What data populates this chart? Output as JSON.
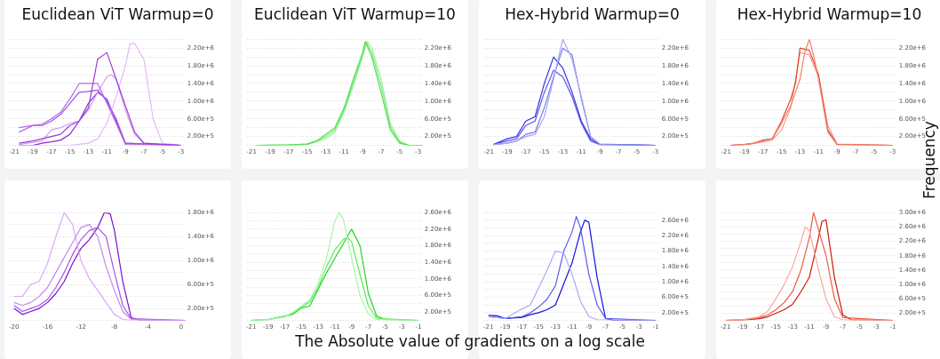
{
  "chart_data": [
    {
      "type": "line",
      "title": "Euclidean ViT Warmup=0",
      "xlim": [
        -21.5,
        -2.5
      ],
      "xticks": [
        -21,
        -19,
        -17,
        -15,
        -13,
        -11,
        -9,
        -7,
        -5,
        -3
      ],
      "ylim": [
        0,
        2400000
      ],
      "yticks": [
        {
          "value": 0,
          "label": null
        },
        {
          "value": 200000,
          "label": "2.00e+5"
        },
        {
          "value": 400000,
          "label": null
        },
        {
          "value": 600000,
          "label": "6.00e+5"
        },
        {
          "value": 800000,
          "label": null
        },
        {
          "value": 1000000,
          "label": "1.00e+6"
        },
        {
          "value": 1200000,
          "label": null
        },
        {
          "value": 1400000,
          "label": "1.40e+6"
        },
        {
          "value": 1600000,
          "label": null
        },
        {
          "value": 1800000,
          "label": "1.80e+6"
        },
        {
          "value": 2000000,
          "label": null
        },
        {
          "value": 2200000,
          "label": "2.20e+6"
        },
        {
          "value": 2400000,
          "label": null
        }
      ],
      "grid": "y",
      "series": [
        {
          "color": "#9b3ddc",
          "x": [
            -20.5,
            -19,
            -17,
            -16,
            -15,
            -14,
            -13,
            -12,
            -11,
            -10,
            -9,
            -8,
            -7,
            -3
          ],
          "values": [
            50000.0,
            100000.0,
            200000.0,
            250000.0,
            450000.0,
            550000.0,
            850000.0,
            1950000.0,
            2100000.0,
            1500000.0,
            900000.0,
            300000.0,
            50000.0,
            0
          ]
        },
        {
          "color": "#b36ae6",
          "x": [
            -20.5,
            -19,
            -18,
            -17,
            -16,
            -15,
            -14,
            -13,
            -12,
            -11,
            -10,
            -9,
            -3
          ],
          "values": [
            400000.0,
            450000.0,
            480000.0,
            600000.0,
            750000.0,
            1050000.0,
            1400000.0,
            1400000.0,
            1400000.0,
            950000.0,
            500000.0,
            20000.0,
            0
          ]
        },
        {
          "color": "#a24fe0",
          "x": [
            -20.5,
            -19,
            -18,
            -17,
            -16,
            -15,
            -14,
            -13,
            -12,
            -11,
            -10,
            -9,
            -3
          ],
          "values": [
            300000.0,
            450000.0,
            450000.0,
            550000.0,
            700000.0,
            950000.0,
            1200000.0,
            1220000.0,
            1250000.0,
            1000000.0,
            600000.0,
            50000.0,
            0
          ]
        },
        {
          "color": "#d39cf2",
          "x": [
            -20.5,
            -18,
            -17,
            -16,
            -15,
            -14,
            -13,
            -12,
            -11,
            -10.5,
            -10,
            -9,
            -8,
            -7,
            -3
          ],
          "values": [
            20000.0,
            100000.0,
            350000.0,
            400000.0,
            500000.0,
            550000.0,
            800000.0,
            1200000.0,
            1550000.0,
            1600000.0,
            1500000.0,
            800000.0,
            250000.0,
            50000.0,
            0
          ]
        },
        {
          "color": "#e6b8f7",
          "x": [
            -20.5,
            -15,
            -13,
            -12,
            -11,
            -10,
            -9,
            -8.5,
            -8,
            -7,
            -6,
            -5,
            -3
          ],
          "values": [
            0,
            0,
            50000.0,
            150000.0,
            500000.0,
            1100000.0,
            1800000.0,
            2300000.0,
            2300000.0,
            1950000.0,
            600000.0,
            50000.0,
            0
          ]
        },
        {
          "color": "#8a2bcc",
          "x": [
            -20.5,
            -19,
            -18,
            -17,
            -16,
            -15,
            -14,
            -13,
            -12,
            -11,
            -10,
            -9,
            -3
          ],
          "values": [
            0,
            0,
            50000.0,
            80000.0,
            120000.0,
            250000.0,
            550000.0,
            950000.0,
            1200000.0,
            1050000.0,
            550000.0,
            50000.0,
            0
          ]
        }
      ]
    },
    {
      "type": "line",
      "title": "Euclidean ViT Warmup=10",
      "xlim": [
        -21.5,
        -2.5
      ],
      "xticks": [
        -21,
        -19,
        -17,
        -15,
        -13,
        -11,
        -9,
        -7,
        -5,
        -3
      ],
      "ylim": [
        0,
        2400000
      ],
      "yticks": [
        {
          "value": 0,
          "label": null
        },
        {
          "value": 200000,
          "label": "2.00e+5"
        },
        {
          "value": 400000,
          "label": null
        },
        {
          "value": 600000,
          "label": "6.00e+5"
        },
        {
          "value": 800000,
          "label": null
        },
        {
          "value": 1000000,
          "label": "1.00e+6"
        },
        {
          "value": 1200000,
          "label": null
        },
        {
          "value": 1400000,
          "label": "1.40e+6"
        },
        {
          "value": 1600000,
          "label": null
        },
        {
          "value": 1800000,
          "label": "1.80e+6"
        },
        {
          "value": 2000000,
          "label": null
        },
        {
          "value": 2200000,
          "label": "2.20e+6"
        },
        {
          "value": 2400000,
          "label": null
        }
      ],
      "grid": "y",
      "series": [
        {
          "color": "#4fe04f",
          "x": [
            -20.5,
            -17,
            -15,
            -14,
            -13,
            -12,
            -11,
            -10,
            -9,
            -8.7,
            -8,
            -7,
            -6,
            -5,
            -4,
            -2.5
          ],
          "values": [
            0,
            10000.0,
            30000.0,
            100000.0,
            250000.0,
            400000.0,
            850000.0,
            1500000.0,
            2100000.0,
            2350000.0,
            2000000.0,
            1200000.0,
            350000.0,
            50000.0,
            0,
            0
          ]
        },
        {
          "color": "#7ceb7c",
          "x": [
            -20.5,
            -17,
            -15,
            -14,
            -13,
            -12,
            -11,
            -10,
            -9,
            -8.6,
            -8,
            -7,
            -6,
            -5,
            -4,
            -2.5
          ],
          "values": [
            0,
            10000.0,
            30000.0,
            90000.0,
            200000.0,
            350000.0,
            800000.0,
            1420000.0,
            2050000.0,
            2330000.0,
            2100000.0,
            1350000.0,
            420000.0,
            70000.0,
            0,
            0
          ]
        },
        {
          "color": "#9ef29e",
          "x": [
            -20.5,
            -17,
            -15,
            -14,
            -13,
            -12,
            -11,
            -10,
            -9,
            -8.5,
            -8,
            -7,
            -6,
            -5,
            -4,
            -2.5
          ],
          "values": [
            0,
            10000.0,
            20000.0,
            80000.0,
            150000.0,
            300000.0,
            750000.0,
            1350000.0,
            2000000.0,
            2350000.0,
            2200000.0,
            1500000.0,
            500000.0,
            100000.0,
            0,
            0
          ]
        }
      ]
    },
    {
      "type": "line",
      "title": "Hex-Hybrid Warmup=0",
      "xlim": [
        -21.5,
        -2.5
      ],
      "xticks": [
        -21,
        -19,
        -17,
        -15,
        -13,
        -11,
        -9,
        -7,
        -5,
        -3
      ],
      "ylim": [
        0,
        2400000
      ],
      "yticks": [
        {
          "value": 0,
          "label": null
        },
        {
          "value": 200000,
          "label": "2.00e+5"
        },
        {
          "value": 400000,
          "label": null
        },
        {
          "value": 600000,
          "label": "6.00e+5"
        },
        {
          "value": 800000,
          "label": null
        },
        {
          "value": 1000000,
          "label": "1.00e+6"
        },
        {
          "value": 1200000,
          "label": null
        },
        {
          "value": 1400000,
          "label": "1.40e+6"
        },
        {
          "value": 1600000,
          "label": null
        },
        {
          "value": 1800000,
          "label": "1.80e+6"
        },
        {
          "value": 2000000,
          "label": null
        },
        {
          "value": 2200000,
          "label": "2.20e+6"
        },
        {
          "value": 2400000,
          "label": null
        }
      ],
      "grid": "y",
      "series": [
        {
          "color": "#a6a6f5",
          "x": [
            -20.5,
            -19,
            -18,
            -17,
            -16,
            -15,
            -14,
            -13,
            -12,
            -11,
            -10,
            -9,
            -3
          ],
          "values": [
            20000.0,
            50000.0,
            100000.0,
            200000.0,
            250000.0,
            650000.0,
            1500000.0,
            2400000.0,
            1950000.0,
            1100000.0,
            200000.0,
            20000.0,
            0
          ]
        },
        {
          "color": "#3434e6",
          "x": [
            -20.5,
            -19,
            -18,
            -17,
            -16,
            -15,
            -14,
            -13,
            -12,
            -11,
            -10,
            -9,
            -3
          ],
          "values": [
            20000.0,
            150000.0,
            200000.0,
            550000.0,
            650000.0,
            1400000.0,
            2000000.0,
            1750000.0,
            1200000.0,
            550000.0,
            150000.0,
            20000.0,
            0
          ]
        },
        {
          "color": "#7a7af0",
          "x": [
            -20.5,
            -19,
            -18,
            -17,
            -16,
            -15,
            -14,
            -13,
            -12,
            -11,
            -10,
            -9,
            -3
          ],
          "values": [
            20000.0,
            50000.0,
            100000.0,
            250000.0,
            300000.0,
            850000.0,
            1550000.0,
            2200000.0,
            2050000.0,
            1050000.0,
            200000.0,
            30000.0,
            0
          ]
        },
        {
          "color": "#5a5aeb",
          "x": [
            -20.5,
            -19,
            -18,
            -17,
            -16,
            -15,
            -14,
            -13,
            -12,
            -11,
            -10,
            -9,
            -3
          ],
          "values": [
            20000.0,
            100000.0,
            150000.0,
            450000.0,
            550000.0,
            1200000.0,
            1700000.0,
            1550000.0,
            1100000.0,
            500000.0,
            100000.0,
            20000.0,
            0
          ]
        }
      ]
    },
    {
      "type": "line",
      "title": "Hex-Hybrid Warmup=10",
      "ylabel": "Frequency",
      "xlim": [
        -21.5,
        -2.5
      ],
      "xticks": [
        -21,
        -19,
        -17,
        -15,
        -13,
        -11,
        -9,
        -7,
        -5,
        -3
      ],
      "ylim": [
        0,
        2400000
      ],
      "yticks": [
        {
          "value": 0,
          "label": null
        },
        {
          "value": 200000,
          "label": "2.00e+5"
        },
        {
          "value": 400000,
          "label": null
        },
        {
          "value": 600000,
          "label": "6.00e+5"
        },
        {
          "value": 800000,
          "label": null
        },
        {
          "value": 1000000,
          "label": "1.00e+6"
        },
        {
          "value": 1200000,
          "label": null
        },
        {
          "value": 1400000,
          "label": "1.40e+6"
        },
        {
          "value": 1600000,
          "label": null
        },
        {
          "value": 1800000,
          "label": "1.80e+6"
        },
        {
          "value": 2000000,
          "label": null
        },
        {
          "value": 2200000,
          "label": "2.20e+6"
        },
        {
          "value": 2400000,
          "label": null
        }
      ],
      "grid": "y",
      "series": [
        {
          "color": "#f08070",
          "x": [
            -20.5,
            -19,
            -18,
            -17,
            -16,
            -15,
            -14,
            -13,
            -12.5,
            -12,
            -11.5,
            -11,
            -10,
            -9,
            -3
          ],
          "values": [
            0,
            20000.0,
            50000.0,
            100000.0,
            150000.0,
            500000.0,
            900000.0,
            1500000.0,
            2100000.0,
            2400000.0,
            2000000.0,
            1500000.0,
            300000.0,
            20000.0,
            0
          ]
        },
        {
          "color": "#e8402a",
          "x": [
            -20.5,
            -19,
            -18,
            -17,
            -16,
            -15,
            -14,
            -13.5,
            -13,
            -12,
            -11,
            -10,
            -9,
            -3
          ],
          "values": [
            0,
            20000.0,
            50000.0,
            120000.0,
            150000.0,
            550000.0,
            1050000.0,
            1400000.0,
            2200000.0,
            2150000.0,
            1600000.0,
            350000.0,
            20000.0,
            0
          ]
        },
        {
          "color": "#f4a093",
          "x": [
            -20.5,
            -19,
            -18,
            -17,
            -16,
            -15,
            -14,
            -13,
            -12,
            -11,
            -10,
            -9,
            -3
          ],
          "values": [
            0,
            20000.0,
            40000.0,
            80000.0,
            120000.0,
            350000.0,
            850000.0,
            2100000.0,
            2050000.0,
            1550000.0,
            450000.0,
            30000.0,
            0
          ]
        }
      ]
    },
    {
      "type": "line",
      "xlim": [
        -20.5,
        0.5
      ],
      "xticks": [
        -20,
        -16,
        -12,
        -8,
        -4,
        0
      ],
      "ylim": [
        0,
        1800000
      ],
      "yticks": [
        {
          "value": 0,
          "label": null
        },
        {
          "value": 200000,
          "label": "2.00e+5"
        },
        {
          "value": 400000,
          "label": null
        },
        {
          "value": 600000,
          "label": "6.00e+5"
        },
        {
          "value": 800000,
          "label": null
        },
        {
          "value": 1000000,
          "label": "1.00e+6"
        },
        {
          "value": 1200000,
          "label": null
        },
        {
          "value": 1400000,
          "label": "1.40e+6"
        },
        {
          "value": 1600000,
          "label": null
        },
        {
          "value": 1800000,
          "label": "1.80e+6"
        }
      ],
      "grid": "y",
      "series": [
        {
          "color": "#dcaaf5",
          "x": [
            -20,
            -19,
            -18,
            -17,
            -16,
            -15,
            -14,
            -13,
            -12,
            -11,
            -10,
            -9,
            -8,
            -7,
            -6,
            0.5
          ],
          "values": [
            400000.0,
            400000.0,
            600000.0,
            650000.0,
            950000.0,
            1400000.0,
            1800000.0,
            1600000.0,
            1000000.0,
            700000.0,
            500000.0,
            300000.0,
            100000.0,
            20000.0,
            0,
            0
          ]
        },
        {
          "color": "#c585ee",
          "x": [
            -20,
            -19,
            -18,
            -17,
            -16,
            -15,
            -14,
            -13,
            -12,
            -11,
            -10,
            -9,
            -8,
            -7,
            -6,
            0.5
          ],
          "values": [
            300000.0,
            250000.0,
            300000.0,
            400000.0,
            550000.0,
            800000.0,
            1050000.0,
            1300000.0,
            1550000.0,
            1600000.0,
            1400000.0,
            900000.0,
            500000.0,
            150000.0,
            20000.0,
            0
          ]
        },
        {
          "color": "#a756e3",
          "x": [
            -20,
            -19,
            -18,
            -17,
            -16,
            -15,
            -14,
            -13,
            -12,
            -11,
            -10,
            -9,
            -8,
            -7,
            -6,
            0.5
          ],
          "values": [
            250000.0,
            150000.0,
            200000.0,
            250000.0,
            350000.0,
            550000.0,
            800000.0,
            1100000.0,
            1350000.0,
            1500000.0,
            1550000.0,
            1400000.0,
            800000.0,
            250000.0,
            30000.0,
            0
          ]
        },
        {
          "color": "#7a10c8",
          "x": [
            -20,
            -19,
            -18,
            -17,
            -16,
            -15,
            -14,
            -13,
            -12,
            -11,
            -10,
            -9.2,
            -8.5,
            -8,
            -7,
            -6,
            -5,
            0.5
          ],
          "values": [
            200000.0,
            100000.0,
            150000.0,
            200000.0,
            300000.0,
            450000.0,
            650000.0,
            950000.0,
            1200000.0,
            1350000.0,
            1550000.0,
            1800000.0,
            1780000.0,
            1500000.0,
            650000.0,
            50000.0,
            0,
            0
          ]
        }
      ]
    },
    {
      "type": "line",
      "xlabel": "The Absolute value of gradients on a log scale",
      "xlim": [
        -21.5,
        -0.5
      ],
      "xticks": [
        -21,
        -19,
        -17,
        -15,
        -13,
        -11,
        -9,
        -7,
        -5,
        -3,
        -1
      ],
      "ylim": [
        0,
        2600000
      ],
      "yticks": [
        {
          "value": 0,
          "label": null
        },
        {
          "value": 200000,
          "label": "2.00e+5"
        },
        {
          "value": 400000,
          "label": null
        },
        {
          "value": 600000,
          "label": "6.00e+5"
        },
        {
          "value": 800000,
          "label": null
        },
        {
          "value": 1000000,
          "label": "1.00e+6"
        },
        {
          "value": 1200000,
          "label": null
        },
        {
          "value": 1400000,
          "label": "1.40e+6"
        },
        {
          "value": 1600000,
          "label": null
        },
        {
          "value": 1800000,
          "label": "1.80e+6"
        },
        {
          "value": 2000000,
          "label": null
        },
        {
          "value": 2200000,
          "label": "2.20e+6"
        },
        {
          "value": 2400000,
          "label": null
        },
        {
          "value": 2600000,
          "label": "2.60e+6"
        }
      ],
      "grid": "y",
      "series": [
        {
          "color": "#a8f5a8",
          "x": [
            -21,
            -19,
            -17,
            -16,
            -15,
            -14,
            -13,
            -12,
            -11,
            -10.5,
            -10,
            -9,
            -8,
            -7,
            -6,
            -1
          ],
          "values": [
            0,
            20000.0,
            80000.0,
            200000.0,
            350000.0,
            500000.0,
            900000.0,
            1500000.0,
            2400000.0,
            2600000.0,
            2450000.0,
            1500000.0,
            600000.0,
            150000.0,
            20000.0,
            0
          ]
        },
        {
          "color": "#5ee85e",
          "x": [
            -21,
            -19,
            -17,
            -16,
            -15,
            -14,
            -13,
            -12,
            -11,
            -10,
            -9.5,
            -9,
            -8,
            -7,
            -6,
            -1
          ],
          "values": [
            0,
            20000.0,
            100000.0,
            180000.0,
            320000.0,
            450000.0,
            800000.0,
            1300000.0,
            1700000.0,
            1950000.0,
            2000000.0,
            1900000.0,
            1100000.0,
            350000.0,
            50000.0,
            0
          ]
        },
        {
          "color": "#22d422",
          "x": [
            -21,
            -19,
            -17,
            -16,
            -15,
            -14,
            -13,
            -12,
            -11,
            -10,
            -9,
            -8,
            -7,
            -6,
            -5,
            -1
          ],
          "values": [
            0,
            20000.0,
            100000.0,
            150000.0,
            300000.0,
            350000.0,
            750000.0,
            1150000.0,
            1500000.0,
            1850000.0,
            2200000.0,
            1800000.0,
            650000.0,
            100000.0,
            20000.0,
            0
          ]
        }
      ]
    },
    {
      "type": "line",
      "xlim": [
        -21.5,
        -0.5
      ],
      "xticks": [
        -21,
        -19,
        -17,
        -15,
        -13,
        -11,
        -9,
        -7,
        -5,
        -3,
        -1
      ],
      "ylim": [
        0,
        2800000
      ],
      "yticks": [
        {
          "value": 0,
          "label": null
        },
        {
          "value": 200000,
          "label": "2.00e+5"
        },
        {
          "value": 400000,
          "label": null
        },
        {
          "value": 600000,
          "label": "6.00e+5"
        },
        {
          "value": 800000,
          "label": null
        },
        {
          "value": 1000000,
          "label": "1.00e+6"
        },
        {
          "value": 1200000,
          "label": null
        },
        {
          "value": 1400000,
          "label": "1.40e+6"
        },
        {
          "value": 1600000,
          "label": null
        },
        {
          "value": 1800000,
          "label": "1.80e+6"
        },
        {
          "value": 2000000,
          "label": null
        },
        {
          "value": 2200000,
          "label": "2.20e+6"
        },
        {
          "value": 2400000,
          "label": null
        },
        {
          "value": 2600000,
          "label": "2.60e+6"
        },
        {
          "value": 2800000,
          "label": null
        }
      ],
      "grid": "y",
      "series": [
        {
          "color": "#a9a9f7",
          "x": [
            -21,
            -19,
            -17,
            -16,
            -15,
            -14,
            -13,
            -12,
            -11,
            -10,
            -9,
            -8,
            -1
          ],
          "values": [
            100000.0,
            50000.0,
            300000.0,
            400000.0,
            850000.0,
            1300000.0,
            1800000.0,
            1750000.0,
            1200000.0,
            500000.0,
            100000.0,
            20000.0,
            0
          ]
        },
        {
          "color": "#5a5af0",
          "x": [
            -21,
            -19,
            -17,
            -16,
            -15,
            -14,
            -13,
            -12,
            -11,
            -10.5,
            -10,
            -9,
            -8,
            -7,
            -1
          ],
          "values": [
            100000.0,
            50000.0,
            100000.0,
            200000.0,
            350000.0,
            550000.0,
            900000.0,
            1800000.0,
            2300000.0,
            2700000.0,
            2400000.0,
            1200000.0,
            400000.0,
            50000.0,
            0
          ]
        },
        {
          "color": "#1010e0",
          "x": [
            -21,
            -20,
            -19,
            -17,
            -16,
            -15,
            -14,
            -13,
            -12,
            -11,
            -10,
            -9.5,
            -9,
            -8,
            -7,
            -6,
            -1
          ],
          "values": [
            130000.0,
            120000.0,
            50000.0,
            80000.0,
            150000.0,
            200000.0,
            280000.0,
            400000.0,
            950000.0,
            1500000.0,
            2300000.0,
            2600000.0,
            2550000.0,
            1100000.0,
            50000.0,
            0,
            0
          ]
        }
      ]
    },
    {
      "type": "line",
      "xlim": [
        -21.5,
        -0.5
      ],
      "xticks": [
        -21,
        -19,
        -17,
        -15,
        -13,
        -11,
        -9,
        -7,
        -5,
        -3,
        -1
      ],
      "ylim": [
        0,
        3000000
      ],
      "yticks": [
        {
          "value": 0,
          "label": null
        },
        {
          "value": 200000,
          "label": "2.00e+5"
        },
        {
          "value": 400000,
          "label": null
        },
        {
          "value": 600000,
          "label": "6.00e+5"
        },
        {
          "value": 800000,
          "label": null
        },
        {
          "value": 1000000,
          "label": "1.00e+6"
        },
        {
          "value": 1200000,
          "label": null
        },
        {
          "value": 1400000,
          "label": "1.40e+6"
        },
        {
          "value": 1600000,
          "label": null
        },
        {
          "value": 1800000,
          "label": "1.80e+6"
        },
        {
          "value": 2000000,
          "label": null
        },
        {
          "value": 2200000,
          "label": "2.20e+6"
        },
        {
          "value": 2400000,
          "label": null
        },
        {
          "value": 2600000,
          "label": "2.60e+6"
        },
        {
          "value": 2800000,
          "label": null
        },
        {
          "value": 3000000,
          "label": "3.00e+6"
        }
      ],
      "grid": "y",
      "series": [
        {
          "color": "#f7a89c",
          "x": [
            -21,
            -19,
            -17,
            -16,
            -15,
            -14,
            -13,
            -12,
            -11.5,
            -11,
            -10,
            -9,
            -8,
            -7,
            -1
          ],
          "values": [
            0,
            20000.0,
            100000.0,
            250000.0,
            600000.0,
            1000000.0,
            1500000.0,
            2200000.0,
            2600000.0,
            2500000.0,
            1500000.0,
            600000.0,
            100000.0,
            20000.0,
            0
          ]
        },
        {
          "color": "#ee5a44",
          "x": [
            -21,
            -19,
            -17,
            -16,
            -15,
            -14,
            -13,
            -12,
            -11,
            -10.5,
            -10,
            -9,
            -8,
            -7,
            -1
          ],
          "values": [
            0,
            20000.0,
            80000.0,
            150000.0,
            300000.0,
            500000.0,
            800000.0,
            1400000.0,
            2300000.0,
            3000000.0,
            2600000.0,
            1800000.0,
            600000.0,
            80000.0,
            0
          ]
        },
        {
          "color": "#c81a0a",
          "x": [
            -21,
            -19,
            -17,
            -16,
            -15,
            -14,
            -13,
            -12,
            -11,
            -10,
            -9.5,
            -9,
            -8,
            -7,
            -6,
            -1
          ],
          "values": [
            0,
            10000.0,
            50000.0,
            100000.0,
            200000.0,
            300000.0,
            450000.0,
            800000.0,
            1200000.0,
            2200000.0,
            2750000.0,
            2800000.0,
            1200000.0,
            150000.0,
            20000.0,
            0
          ]
        }
      ]
    }
  ]
}
